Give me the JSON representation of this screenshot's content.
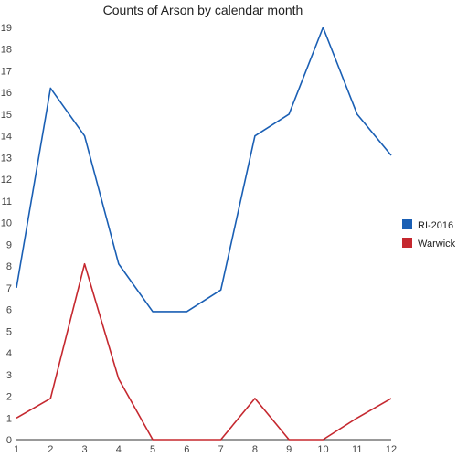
{
  "chart_data": {
    "type": "line",
    "title": "Counts of Arson by calendar month",
    "xlabel": "",
    "ylabel": "",
    "categories": [
      "1",
      "2",
      "3",
      "4",
      "5",
      "6",
      "7",
      "8",
      "9",
      "10",
      "11",
      "12"
    ],
    "y_ticks": [
      "0",
      "1",
      "2",
      "3",
      "4",
      "5",
      "6",
      "7",
      "8",
      "9",
      "10",
      "11",
      "12",
      "13",
      "14",
      "15",
      "16",
      "17",
      "18",
      "19"
    ],
    "ylim": [
      0,
      19
    ],
    "grid": false,
    "legend_position": "right",
    "series": [
      {
        "name": "RI-2016",
        "color": "#1a5fb4",
        "values": [
          7,
          16.2,
          14,
          8.1,
          5.9,
          5.9,
          6.9,
          14,
          15,
          19,
          15,
          13.1
        ]
      },
      {
        "name": "Warwick",
        "color": "#c5282f",
        "values": [
          1,
          1.9,
          8.1,
          2.8,
          0,
          0,
          0,
          1.9,
          0,
          0,
          1,
          1.9
        ]
      }
    ]
  }
}
